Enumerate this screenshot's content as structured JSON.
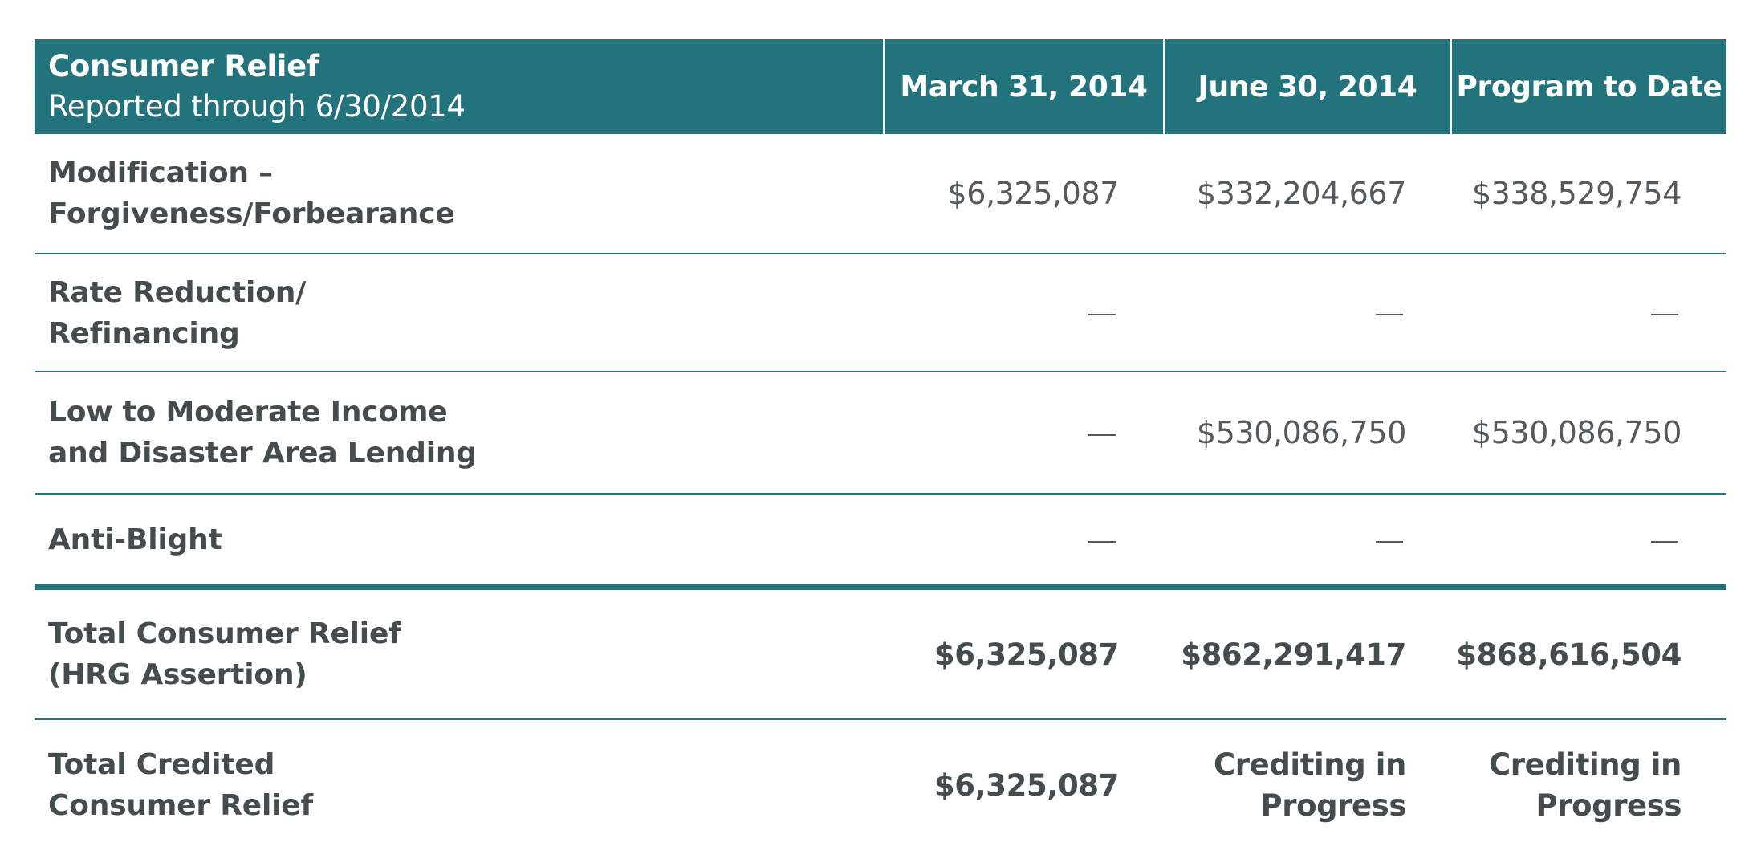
{
  "table": {
    "header": {
      "title": "Consumer Relief",
      "subtitle": "Reported through 6/30/2014",
      "columns": [
        "March 31, 2014",
        "June 30, 2014",
        "Program to Date"
      ]
    },
    "rows": [
      {
        "label_lines": [
          "Modification –",
          "Forgiveness/Forbearance"
        ],
        "values": [
          "$6,325,087",
          "$332,204,667",
          "$338,529,754"
        ]
      },
      {
        "label_lines": [
          "Rate Reduction/",
          "Refinancing"
        ],
        "values": [
          "—",
          "—",
          "—"
        ]
      },
      {
        "label_lines": [
          "Low to Moderate Income",
          "and Disaster Area Lending"
        ],
        "values": [
          "—",
          "$530,086,750",
          "$530,086,750"
        ]
      },
      {
        "label_lines": [
          "Anti-Blight"
        ],
        "values": [
          "—",
          "—",
          "—"
        ]
      },
      {
        "label_lines": [
          "Total Consumer Relief",
          "(HRG Assertion)"
        ],
        "values": [
          "$6,325,087",
          "$862,291,417",
          "$868,616,504"
        ]
      },
      {
        "label_lines": [
          "Total Credited",
          "Consumer Relief"
        ],
        "values": [
          "$6,325,087",
          "Crediting in Progress",
          "Crediting in Progress"
        ],
        "value_lines": [
          [
            "$6,325,087"
          ],
          [
            "Crediting in",
            "Progress"
          ],
          [
            "Crediting in",
            "Progress"
          ]
        ]
      }
    ]
  },
  "colors": {
    "header_bg": "#23737c",
    "rule": "#23737c",
    "text": "#464b4e"
  }
}
